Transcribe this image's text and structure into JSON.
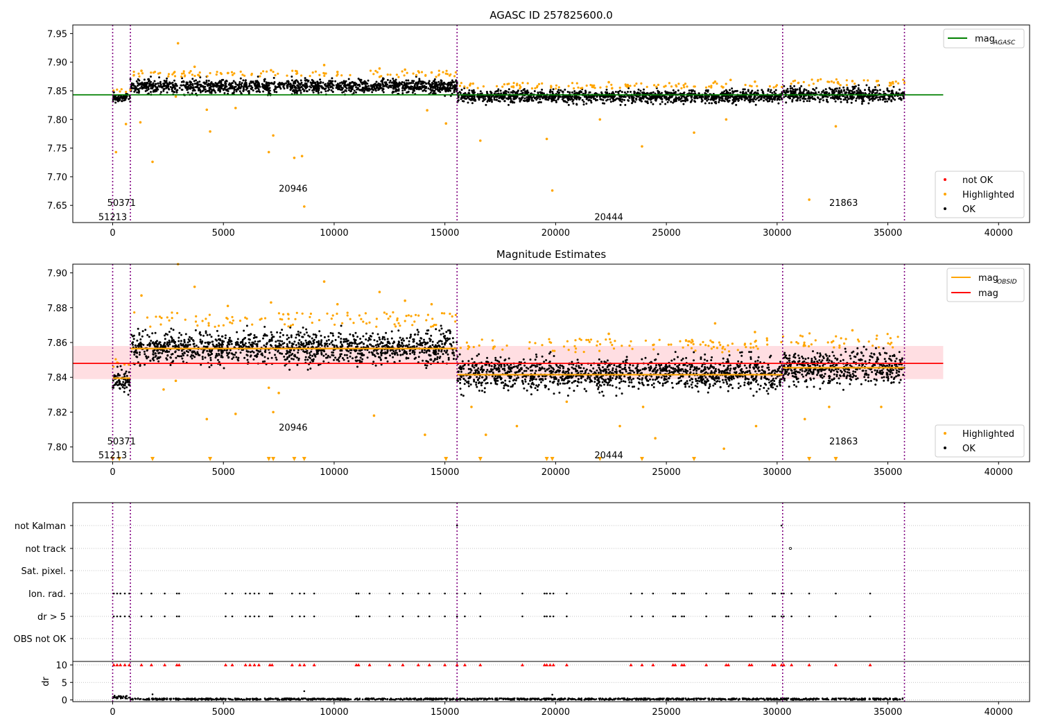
{
  "chart_data": [
    {
      "type": "scatter",
      "title": "AGASC ID 257825600.0",
      "xlabel": "",
      "ylabel": "",
      "xlim": [
        -1800,
        41400
      ],
      "ylim": [
        7.62,
        7.965
      ],
      "x_ticks": [
        0,
        5000,
        10000,
        15000,
        20000,
        25000,
        30000,
        35000,
        40000
      ],
      "x_tick_labels": [
        "0",
        "5000",
        "10000",
        "15000",
        "20000",
        "25000",
        "30000",
        "35000",
        "40000"
      ],
      "y_ticks": [
        7.65,
        7.7,
        7.75,
        7.8,
        7.85,
        7.9,
        7.95
      ],
      "y_tick_labels": [
        "7.65",
        "7.70",
        "7.75",
        "7.80",
        "7.85",
        "7.90",
        "7.95"
      ],
      "obsid_boundaries": [
        0,
        800,
        15550,
        30250,
        35750
      ],
      "obsid_labels": [
        {
          "text": "50371",
          "x": 400,
          "y": 7.655
        },
        {
          "text": "51213",
          "x": 0,
          "y": 7.63
        },
        {
          "text": "20946",
          "x": 8150,
          "y": 7.68
        },
        {
          "text": "20444",
          "x": 22400,
          "y": 7.63
        },
        {
          "text": "21863",
          "x": 33000,
          "y": 7.655
        }
      ],
      "mag_agasc": 7.843,
      "mag_agasc_range": [
        -1800,
        37500
      ],
      "ok_bands": [
        {
          "x": [
            0,
            800
          ],
          "mean": 7.838,
          "spread": 0.009
        },
        {
          "x": [
            800,
            15550
          ],
          "mean": 7.858,
          "spread": 0.016
        },
        {
          "x": [
            15550,
            30250
          ],
          "mean": 7.84,
          "spread": 0.014
        },
        {
          "x": [
            30250,
            35750
          ],
          "mean": 7.843,
          "spread": 0.016
        }
      ],
      "highlighted_points": [
        [
          2950,
          7.933
        ],
        [
          150,
          7.743
        ],
        [
          600,
          7.792
        ],
        [
          1250,
          7.795
        ],
        [
          1800,
          7.726
        ],
        [
          2850,
          7.84
        ],
        [
          4400,
          7.779
        ],
        [
          4250,
          7.817
        ],
        [
          5550,
          7.82
        ],
        [
          7050,
          7.743
        ],
        [
          7250,
          7.772
        ],
        [
          8200,
          7.733
        ],
        [
          8550,
          7.736
        ],
        [
          8650,
          7.648
        ],
        [
          14200,
          7.816
        ],
        [
          15050,
          7.793
        ],
        [
          16600,
          7.763
        ],
        [
          19600,
          7.766
        ],
        [
          19850,
          7.676
        ],
        [
          22000,
          7.8
        ],
        [
          23900,
          7.753
        ],
        [
          26250,
          7.777
        ],
        [
          27700,
          7.8
        ],
        [
          31450,
          7.66
        ],
        [
          32650,
          7.788
        ],
        [
          3700,
          7.892
        ],
        [
          9550,
          7.895
        ],
        [
          12050,
          7.889
        ],
        [
          1300,
          7.885
        ],
        [
          5200,
          7.881
        ],
        [
          7150,
          7.886
        ],
        [
          10150,
          7.883
        ],
        [
          13200,
          7.887
        ],
        [
          14400,
          7.882
        ],
        [
          27900,
          7.869
        ],
        [
          33400,
          7.867
        ],
        [
          27200,
          7.866
        ],
        [
          22400,
          7.865
        ],
        [
          29000,
          7.866
        ],
        [
          34500,
          7.867
        ]
      ],
      "legend": [
        {
          "label": "mag",
          "sub": "AGASC",
          "color": "#008000",
          "kind": "line"
        },
        {
          "label": "not OK",
          "color": "#ff0000",
          "kind": "point"
        },
        {
          "label": "Highlighted",
          "color": "#ffa500",
          "kind": "point"
        },
        {
          "label": "OK",
          "color": "#000000",
          "kind": "point"
        }
      ]
    },
    {
      "type": "scatter",
      "title": "Magnitude Estimates",
      "xlabel": "",
      "ylabel": "",
      "xlim": [
        -1800,
        41400
      ],
      "ylim": [
        7.7915,
        7.905
      ],
      "x_ticks": [
        0,
        5000,
        10000,
        15000,
        20000,
        25000,
        30000,
        35000,
        40000
      ],
      "x_tick_labels": [
        "0",
        "5000",
        "10000",
        "15000",
        "20000",
        "25000",
        "30000",
        "35000",
        "40000"
      ],
      "y_ticks": [
        7.8,
        7.82,
        7.84,
        7.86,
        7.88,
        7.9
      ],
      "y_tick_labels": [
        "7.80",
        "7.82",
        "7.84",
        "7.86",
        "7.88",
        "7.90"
      ],
      "obsid_boundaries": [
        0,
        800,
        15550,
        30250,
        35750
      ],
      "obsid_labels": [
        {
          "text": "50371",
          "x": 400,
          "y": 7.8035
        },
        {
          "text": "51213",
          "x": 0,
          "y": 7.7955
        },
        {
          "text": "20946",
          "x": 8150,
          "y": 7.8115
        },
        {
          "text": "20444",
          "x": 22400,
          "y": 7.7955
        },
        {
          "text": "21863",
          "x": 33000,
          "y": 7.8035
        }
      ],
      "mag": 7.848,
      "mag_band": [
        7.839,
        7.858
      ],
      "mag_range": [
        -1800,
        37500
      ],
      "mag_obsid": [
        {
          "x": [
            0,
            800
          ],
          "value": 7.8395
        },
        {
          "x": [
            800,
            15550
          ],
          "value": 7.8565
        },
        {
          "x": [
            15550,
            30250
          ],
          "value": 7.8415
        },
        {
          "x": [
            30250,
            35750
          ],
          "value": 7.8455
        }
      ],
      "ok_bands": [
        {
          "x": [
            0,
            800
          ],
          "mean": 7.838,
          "spread": 0.008
        },
        {
          "x": [
            800,
            15550
          ],
          "mean": 7.857,
          "spread": 0.012
        },
        {
          "x": [
            15550,
            30250
          ],
          "mean": 7.842,
          "spread": 0.012
        },
        {
          "x": [
            30250,
            35750
          ],
          "mean": 7.845,
          "spread": 0.012
        }
      ],
      "highlighted_points": [
        [
          2950,
          7.905
        ],
        [
          3700,
          7.892
        ],
        [
          9550,
          7.895
        ],
        [
          12050,
          7.889
        ],
        [
          1300,
          7.887
        ],
        [
          5200,
          7.881
        ],
        [
          7150,
          7.883
        ],
        [
          10150,
          7.882
        ],
        [
          13200,
          7.884
        ],
        [
          14400,
          7.882
        ],
        [
          2850,
          7.838
        ],
        [
          2300,
          7.833
        ],
        [
          4250,
          7.816
        ],
        [
          5550,
          7.819
        ],
        [
          7050,
          7.834
        ],
        [
          7250,
          7.82
        ],
        [
          7500,
          7.831
        ],
        [
          11800,
          7.818
        ],
        [
          14100,
          7.807
        ],
        [
          16200,
          7.823
        ],
        [
          16850,
          7.807
        ],
        [
          18250,
          7.812
        ],
        [
          20500,
          7.826
        ],
        [
          22900,
          7.812
        ],
        [
          23950,
          7.823
        ],
        [
          24500,
          7.805
        ],
        [
          27600,
          7.799
        ],
        [
          29050,
          7.812
        ],
        [
          31250,
          7.816
        ],
        [
          32350,
          7.823
        ],
        [
          34700,
          7.823
        ],
        [
          27200,
          7.871
        ],
        [
          22400,
          7.865
        ],
        [
          29000,
          7.866
        ],
        [
          33400,
          7.867
        ]
      ],
      "low_markers_x": [
        0,
        300,
        1800,
        4400,
        7050,
        7250,
        8200,
        8650,
        15050,
        16600,
        19600,
        19850,
        22000,
        23900,
        26250,
        31450,
        32650
      ],
      "legend": [
        {
          "label": "mag",
          "sub": "OBSID",
          "color": "#ffa500",
          "kind": "line"
        },
        {
          "label": "mag",
          "color": "#ff0000",
          "kind": "line"
        },
        {
          "label": "Highlighted",
          "color": "#ffa500",
          "kind": "point"
        },
        {
          "label": "OK",
          "color": "#000000",
          "kind": "point"
        }
      ]
    },
    {
      "type": "scatter",
      "title": "",
      "xlim": [
        -1800,
        41400
      ],
      "x_ticks": [
        0,
        5000,
        10000,
        15000,
        20000,
        25000,
        30000,
        35000,
        40000
      ],
      "x_tick_labels": [
        "0",
        "5000",
        "10000",
        "15000",
        "20000",
        "25000",
        "30000",
        "35000",
        "40000"
      ],
      "flag_rows": [
        "not Kalman",
        "not track",
        "Sat. pixel.",
        "Ion. rad.",
        "dr > 5",
        "OBS not OK"
      ],
      "obsid_boundaries": [
        0,
        800,
        15550,
        30250,
        35750
      ],
      "flag_events_x": [
        50,
        200,
        350,
        550,
        750,
        1300,
        1750,
        2350,
        2900,
        3000,
        5100,
        5400,
        6000,
        6200,
        6400,
        6600,
        7100,
        7200,
        8100,
        8450,
        8650,
        9100,
        11000,
        11100,
        11600,
        12500,
        13100,
        13800,
        14300,
        15000,
        15550,
        15900,
        16600,
        18500,
        19500,
        19600,
        19750,
        19900,
        20500,
        23400,
        23900,
        24400,
        25300,
        25400,
        25700,
        25800,
        26800,
        27700,
        27800,
        28750,
        28850,
        29800,
        29900,
        30200,
        30300,
        30650,
        31450,
        32650,
        34200
      ],
      "not_kalman_x": [
        15550,
        30200
      ],
      "not_track_x": [
        30600
      ],
      "dr_ylabel": "dr",
      "dr_ylim": [
        -0.5,
        10.8
      ],
      "dr_y_ticks": [
        0,
        5,
        10
      ],
      "dr_y_tick_labels": [
        "0",
        "5",
        "10"
      ],
      "dr_outliers": [
        [
          1800,
          1.6
        ],
        [
          8650,
          2.5
        ],
        [
          19850,
          1.5
        ]
      ]
    }
  ]
}
